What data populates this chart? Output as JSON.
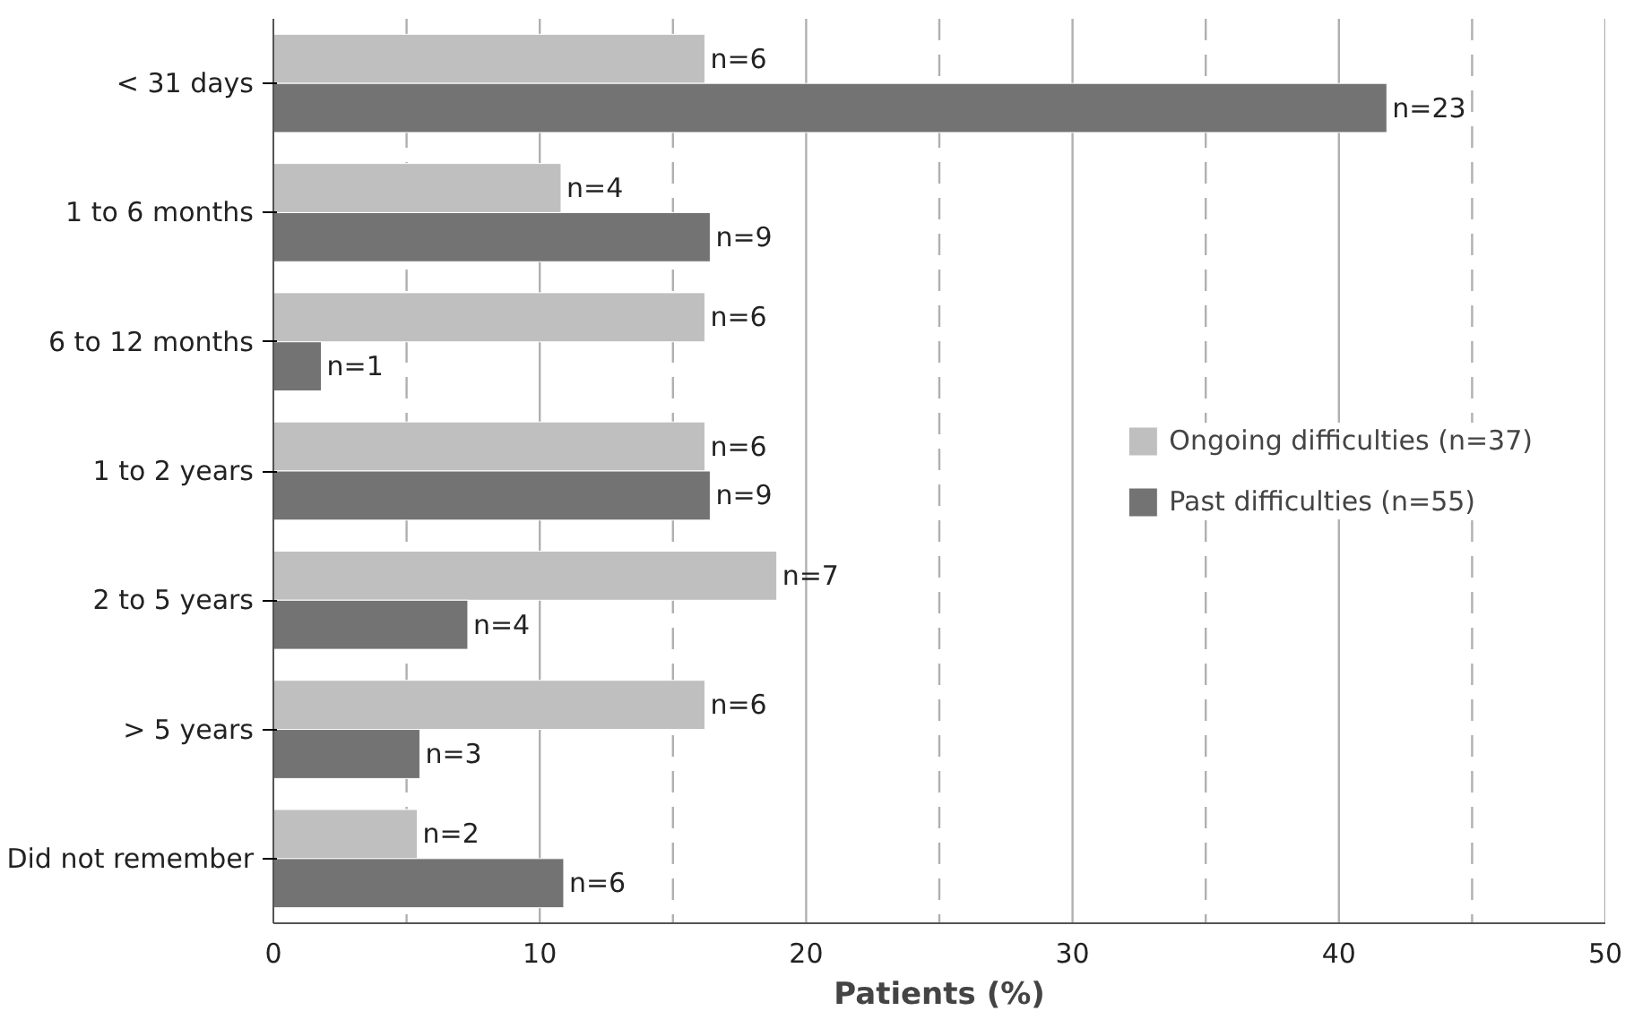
{
  "chart_data": {
    "type": "bar",
    "orientation": "horizontal",
    "xlabel": "Patients (%)",
    "categories": [
      "< 31 days",
      "1 to 6 months",
      "6 to 12 months",
      "1 to 2 years",
      "2 to 5 years",
      "> 5 years",
      "Did not remember"
    ],
    "series": [
      {
        "name": "Ongoing difficulties (n=37)",
        "color": "#bfbfbf",
        "values": [
          16.2,
          10.8,
          16.2,
          16.2,
          18.9,
          16.2,
          5.4
        ]
      },
      {
        "name": "Past difficulties (n=55)",
        "color": "#737373",
        "values": [
          41.8,
          16.4,
          1.8,
          16.4,
          7.3,
          5.5,
          10.9
        ]
      }
    ],
    "annotations": [
      {
        "text": "n=6",
        "x": 16.2,
        "y": "< 31 days"
      },
      {
        "text": "n=23",
        "x": 41.8,
        "y": "< 31 days"
      },
      {
        "text": "n=4",
        "x": 10.8,
        "y": "1 to 6 months"
      },
      {
        "text": "n=9",
        "x": 16.4,
        "y": "1 to 6 months"
      },
      {
        "text": "n=6",
        "x": 16.2,
        "y": "6 to 12 months"
      },
      {
        "text": "n=1",
        "x": 1.8,
        "y": "6 to 12 months"
      },
      {
        "text": "n=6",
        "x": 16.2,
        "y": "1 to 2 years"
      },
      {
        "text": "n=9",
        "x": 16.4,
        "y": "1 to 2 years"
      },
      {
        "text": "n=7",
        "x": 18.9,
        "y": "2 to 5 years"
      },
      {
        "text": "n=4",
        "x": 7.3,
        "y": "2 to 5 years"
      },
      {
        "text": "n=6",
        "x": 16.2,
        "y": "> 5 years"
      },
      {
        "text": "n=3",
        "x": 5.5,
        "y": "> 5 years"
      },
      {
        "text": "n=2",
        "x": 5.4,
        "y": "Did not remember"
      },
      {
        "text": "n=6",
        "x": 10.9,
        "y": "Did not remember"
      }
    ],
    "xlim": [
      0,
      50
    ],
    "xticks": [
      0,
      {
        "value": 5,
        "label": null
      },
      10,
      {
        "value": 15,
        "label": null
      },
      20,
      {
        "value": 25,
        "label": null
      },
      30,
      {
        "value": 35,
        "label": null
      },
      40,
      {
        "value": 45,
        "label": null
      },
      50
    ],
    "grid": "x",
    "legend": "right"
  }
}
